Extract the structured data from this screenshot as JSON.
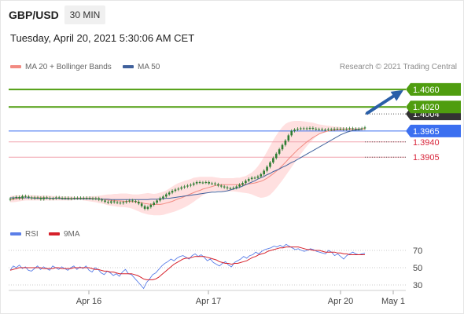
{
  "header": {
    "pair": "GBP/USD",
    "timeframe": "30 MIN",
    "datetime": "Tuesday, April 20, 2021 5:30:06 AM CET",
    "legend_bb": "MA 20 + Bollinger Bands",
    "legend_ma50": "MA 50",
    "credit": "Research © 2021 Trading Central",
    "legend_rsi": "RSI",
    "legend_9ma": "9MA"
  },
  "colors": {
    "candle": "#2e7d32",
    "bb_band": "#ffd6d6",
    "ma20": "#f28b82",
    "ma50": "#40619c",
    "target_green": "#4f9d0f",
    "pivot_blue": "#3b6ff0",
    "support_red": "#d8263b",
    "arrow": "#2a5fa8",
    "rsi": "#5b7fe8",
    "rsi_ma": "#d6202a"
  },
  "chart_data": [
    {
      "type": "candlestick",
      "title": "GBP/USD",
      "timeframe": "30 MIN",
      "x_ticks": [
        "Apr 16",
        "Apr 17",
        "Apr 20",
        "May 1"
      ],
      "ylim": [
        1.376,
        1.4085
      ],
      "series_description": "GBP/USD 30-minute candles with MA 20, Bollinger Bands and MA 50",
      "close": [
        1.381,
        1.3812,
        1.3814,
        1.3811,
        1.3816,
        1.3815,
        1.3813,
        1.3811,
        1.3813,
        1.3812,
        1.3809,
        1.3813,
        1.3812,
        1.381,
        1.3811,
        1.3813,
        1.3812,
        1.3811,
        1.3812,
        1.381,
        1.3811,
        1.3812,
        1.3811,
        1.3812,
        1.3811,
        1.3812,
        1.3811,
        1.381,
        1.3811,
        1.3808,
        1.3806,
        1.3803,
        1.3801,
        1.3804,
        1.3802,
        1.3801,
        1.38,
        1.3802,
        1.3804,
        1.3806,
        1.3805,
        1.3803,
        1.3799,
        1.3793,
        1.3787,
        1.3791,
        1.3796,
        1.3801,
        1.3806,
        1.3811,
        1.3815,
        1.382,
        1.3824,
        1.3828,
        1.3831,
        1.3833,
        1.3836,
        1.3838,
        1.384,
        1.3842,
        1.3845,
        1.3848,
        1.3847,
        1.3847,
        1.3848,
        1.3845,
        1.3845,
        1.3843,
        1.384,
        1.3838,
        1.3836,
        1.3834,
        1.3834,
        1.3835,
        1.3838,
        1.3842,
        1.3846,
        1.3851,
        1.3855,
        1.3858,
        1.3858,
        1.3861,
        1.3866,
        1.3874,
        1.3883,
        1.3893,
        1.3903,
        1.3913,
        1.3923,
        1.3933,
        1.3943,
        1.3955,
        1.3965,
        1.3968,
        1.397,
        1.3971,
        1.3971,
        1.397,
        1.3972,
        1.397,
        1.3969,
        1.3969,
        1.3968,
        1.3968,
        1.3969,
        1.3968,
        1.397,
        1.397,
        1.397,
        1.3969,
        1.397,
        1.3971,
        1.397,
        1.3969,
        1.397,
        1.3971,
        1.3973
      ],
      "ma20": [
        1.3808,
        1.3809,
        1.381,
        1.3811,
        1.3811,
        1.3812,
        1.3812,
        1.3812,
        1.3812,
        1.3812,
        1.3812,
        1.3812,
        1.3812,
        1.3811,
        1.3811,
        1.3811,
        1.3811,
        1.3811,
        1.3811,
        1.3811,
        1.3811,
        1.3811,
        1.3811,
        1.3811,
        1.3811,
        1.3811,
        1.3811,
        1.3811,
        1.381,
        1.381,
        1.3809,
        1.3808,
        1.3807,
        1.3806,
        1.3806,
        1.3805,
        1.3805,
        1.3804,
        1.3804,
        1.3804,
        1.3803,
        1.3803,
        1.3802,
        1.3801,
        1.3799,
        1.3798,
        1.3797,
        1.3797,
        1.3797,
        1.3797,
        1.3798,
        1.38,
        1.3802,
        1.3804,
        1.3807,
        1.381,
        1.3812,
        1.3815,
        1.3818,
        1.3821,
        1.3824,
        1.3827,
        1.3829,
        1.3832,
        1.3834,
        1.3836,
        1.3838,
        1.384,
        1.3841,
        1.3842,
        1.3842,
        1.3842,
        1.3842,
        1.3842,
        1.3842,
        1.3842,
        1.3842,
        1.3843,
        1.3844,
        1.3845,
        1.3846,
        1.3848,
        1.385,
        1.3853,
        1.3857,
        1.3862,
        1.3867,
        1.3873,
        1.3879,
        1.3886,
        1.3893,
        1.3901,
        1.3908,
        1.3915,
        1.3922,
        1.3928,
        1.3934,
        1.394,
        1.3945,
        1.395,
        1.3954,
        1.3958,
        1.3961,
        1.3963,
        1.3965,
        1.3966,
        1.3967,
        1.3968,
        1.3968,
        1.3969,
        1.3969,
        1.3969,
        1.3969,
        1.3969,
        1.3969,
        1.397,
        1.397
      ],
      "bb_upper": [
        1.3816,
        1.3817,
        1.3818,
        1.3818,
        1.3818,
        1.3818,
        1.3818,
        1.3818,
        1.3818,
        1.3817,
        1.3817,
        1.3817,
        1.3817,
        1.3817,
        1.3816,
        1.3816,
        1.3815,
        1.3815,
        1.3815,
        1.3815,
        1.3815,
        1.3814,
        1.3814,
        1.3814,
        1.3814,
        1.3815,
        1.3815,
        1.3816,
        1.3816,
        1.3817,
        1.3818,
        1.3819,
        1.382,
        1.382,
        1.3821,
        1.3821,
        1.3822,
        1.3822,
        1.3822,
        1.3821,
        1.382,
        1.382,
        1.382,
        1.3821,
        1.3822,
        1.3823,
        1.3822,
        1.3821,
        1.3822,
        1.3824,
        1.3826,
        1.3829,
        1.3833,
        1.3838,
        1.3842,
        1.3846,
        1.3848,
        1.3851,
        1.3853,
        1.3855,
        1.3858,
        1.3859,
        1.386,
        1.386,
        1.386,
        1.386,
        1.386,
        1.3859,
        1.3858,
        1.3857,
        1.3857,
        1.3857,
        1.3857,
        1.3857,
        1.3858,
        1.3858,
        1.386,
        1.3862,
        1.3866,
        1.387,
        1.3876,
        1.3884,
        1.3894,
        1.3906,
        1.3918,
        1.3931,
        1.3944,
        1.3955,
        1.3965,
        1.3974,
        1.3981,
        1.3985,
        1.3987,
        1.3988,
        1.3988,
        1.3988,
        1.3987,
        1.3986,
        1.3985,
        1.3984,
        1.3982,
        1.398,
        1.3979,
        1.3978,
        1.3977,
        1.3976,
        1.3975,
        1.3975,
        1.3974,
        1.3973,
        1.3972,
        1.3972,
        1.3972,
        1.3972,
        1.3972,
        1.3972,
        1.3973
      ],
      "bb_lower": [
        1.3802,
        1.3802,
        1.3803,
        1.3804,
        1.3805,
        1.3806,
        1.3806,
        1.3806,
        1.3806,
        1.3806,
        1.3806,
        1.3806,
        1.3806,
        1.3806,
        1.3806,
        1.3806,
        1.3806,
        1.3806,
        1.3806,
        1.3806,
        1.3806,
        1.3807,
        1.3807,
        1.3807,
        1.3806,
        1.3805,
        1.3804,
        1.3803,
        1.3802,
        1.38,
        1.3799,
        1.3797,
        1.3795,
        1.3794,
        1.3793,
        1.3792,
        1.3791,
        1.3791,
        1.379,
        1.3789,
        1.3787,
        1.3784,
        1.3781,
        1.3778,
        1.3776,
        1.3774,
        1.3773,
        1.3772,
        1.3772,
        1.3772,
        1.3773,
        1.3775,
        1.3777,
        1.3779,
        1.3781,
        1.3784,
        1.3787,
        1.379,
        1.3794,
        1.3798,
        1.3803,
        1.3808,
        1.3813,
        1.3818,
        1.3822,
        1.3825,
        1.3827,
        1.3828,
        1.3828,
        1.3828,
        1.3827,
        1.3827,
        1.3827,
        1.3827,
        1.3826,
        1.3825,
        1.3824,
        1.3823,
        1.3822,
        1.382,
        1.3817,
        1.3814,
        1.3812,
        1.3813,
        1.3815,
        1.3819,
        1.3826,
        1.3834,
        1.3843,
        1.3852,
        1.3862,
        1.3872,
        1.3882,
        1.3892,
        1.3902,
        1.3912,
        1.3921,
        1.393,
        1.3938,
        1.3945,
        1.3952,
        1.3957,
        1.3961,
        1.3963,
        1.3964,
        1.3965,
        1.3965,
        1.3965,
        1.3964,
        1.3964,
        1.3964,
        1.3965,
        1.3965,
        1.3965,
        1.3965,
        1.3966,
        1.3967
      ],
      "ma50": [
        1.3812,
        1.3812,
        1.3812,
        1.3812,
        1.3812,
        1.3812,
        1.3812,
        1.3812,
        1.3811,
        1.3811,
        1.3811,
        1.3811,
        1.3811,
        1.3811,
        1.3811,
        1.3811,
        1.3811,
        1.381,
        1.381,
        1.381,
        1.381,
        1.381,
        1.381,
        1.381,
        1.381,
        1.381,
        1.381,
        1.381,
        1.381,
        1.3809,
        1.3809,
        1.3809,
        1.3809,
        1.3808,
        1.3808,
        1.3808,
        1.3808,
        1.3808,
        1.3808,
        1.3808,
        1.3808,
        1.3808,
        1.3808,
        1.3808,
        1.3808,
        1.3808,
        1.3809,
        1.3809,
        1.3809,
        1.381,
        1.381,
        1.3811,
        1.3811,
        1.3812,
        1.3813,
        1.3814,
        1.3815,
        1.3816,
        1.3817,
        1.3818,
        1.3819,
        1.382,
        1.3821,
        1.3822,
        1.3823,
        1.3824,
        1.3825,
        1.3825,
        1.3826,
        1.3826,
        1.3827,
        1.3828,
        1.383,
        1.3832,
        1.3834,
        1.3836,
        1.3839,
        1.3842,
        1.3845,
        1.3848,
        1.3851,
        1.3855,
        1.3858,
        1.3861,
        1.3865,
        1.3868,
        1.3872,
        1.3875,
        1.3878,
        1.3882,
        1.3885,
        1.3889,
        1.3893,
        1.3896,
        1.39,
        1.3904,
        1.3908,
        1.3912,
        1.3916,
        1.392,
        1.3924,
        1.3928,
        1.3932,
        1.3936,
        1.394,
        1.3944,
        1.3948,
        1.3952,
        1.3956,
        1.3959,
        1.3962,
        1.3964,
        1.3966,
        1.3967,
        1.3968,
        1.3969
      ],
      "levels": [
        {
          "label": "1.4060",
          "value": 1.406,
          "style": "target"
        },
        {
          "label": "1.4020",
          "value": 1.402,
          "style": "target"
        },
        {
          "label": "1.4004",
          "value": 1.4004,
          "style": "current"
        },
        {
          "label": "1.3965",
          "value": 1.3965,
          "style": "pivot"
        },
        {
          "label": "1.3940",
          "value": 1.394,
          "style": "support"
        },
        {
          "label": "1.3905",
          "value": 1.3905,
          "style": "support"
        }
      ],
      "arrow": {
        "from": 1.4004,
        "to": 1.406
      }
    },
    {
      "type": "line",
      "title": "RSI",
      "ylim": [
        20,
        80
      ],
      "y_ticks": [
        "70",
        "50",
        "30"
      ],
      "series": [
        {
          "name": "RSI",
          "values": [
            47,
            52,
            50,
            53,
            49,
            51,
            47,
            46,
            49,
            52,
            48,
            51,
            49,
            47,
            52,
            50,
            48,
            51,
            49,
            47,
            50,
            52,
            48,
            51,
            49,
            52,
            47,
            45,
            50,
            48,
            44,
            42,
            46,
            44,
            41,
            43,
            40,
            45,
            48,
            43,
            42,
            38,
            34,
            30,
            26,
            33,
            37,
            42,
            44,
            48,
            52,
            55,
            57,
            60,
            58,
            61,
            63,
            64,
            62,
            60,
            64,
            66,
            63,
            65,
            62,
            58,
            60,
            56,
            54,
            52,
            55,
            57,
            53,
            51,
            56,
            58,
            60,
            63,
            61,
            64,
            65,
            68,
            66,
            69,
            71,
            72,
            73,
            75,
            74,
            76,
            74,
            77,
            75,
            73,
            71,
            72,
            70,
            69,
            70,
            72,
            71,
            69,
            68,
            67,
            66,
            70,
            68,
            64,
            66,
            63,
            60,
            64,
            66,
            68,
            66,
            65,
            66,
            67
          ]
        },
        {
          "name": "9MA",
          "values": [
            47,
            48,
            49,
            50,
            50,
            50,
            50,
            50,
            50,
            50,
            50,
            49,
            49,
            49,
            49,
            50,
            50,
            49,
            49,
            49,
            49,
            50,
            50,
            50,
            50,
            50,
            50,
            49,
            48,
            48,
            47,
            46,
            46,
            45,
            45,
            44,
            43,
            43,
            43,
            43,
            43,
            42,
            41,
            39,
            37,
            36,
            36,
            36,
            37,
            39,
            42,
            45,
            48,
            51,
            54,
            56,
            58,
            60,
            61,
            61,
            62,
            63,
            63,
            63,
            63,
            62,
            61,
            60,
            59,
            57,
            56,
            55,
            55,
            54,
            55,
            55,
            56,
            57,
            58,
            60,
            62,
            63,
            65,
            66,
            67,
            69,
            70,
            71,
            72,
            73,
            73,
            74,
            74,
            74,
            74,
            74,
            73,
            72,
            71,
            71,
            70,
            70,
            70,
            69,
            68,
            68,
            68,
            68,
            67,
            67,
            66,
            66,
            65,
            65,
            65,
            65,
            65,
            65
          ]
        }
      ],
      "x_ticks": [
        "Apr 16",
        "Apr 17",
        "Apr 20",
        "May 1"
      ]
    }
  ]
}
